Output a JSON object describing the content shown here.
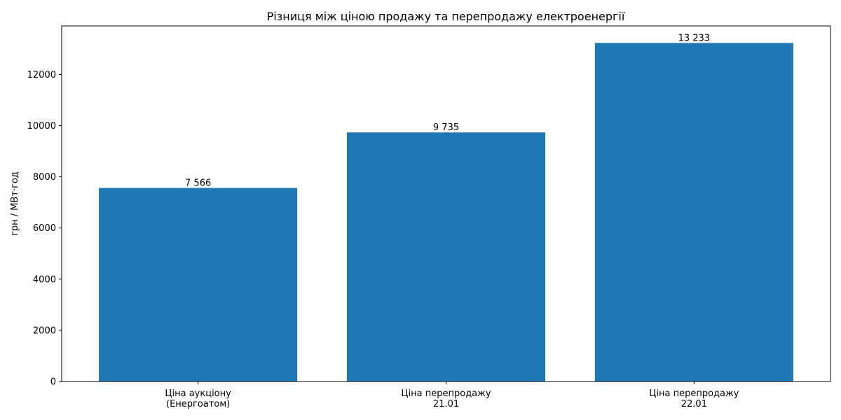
{
  "chart_data": {
    "type": "bar",
    "title": "Різниця між ціною продажу та перепродажу електроенергії",
    "xlabel": "",
    "ylabel": "грн / МВт·год",
    "categories": [
      [
        "Ціна аукціону",
        "(Енергоатом)"
      ],
      [
        "Ціна перепродажу",
        "21.01"
      ],
      [
        "Ціна перепродажу",
        "22.01"
      ]
    ],
    "values": [
      7566,
      9735,
      13233
    ],
    "value_labels": [
      "7 566",
      "9 735",
      "13 233"
    ],
    "ylim": [
      0,
      13900
    ],
    "yticks": [
      0,
      2000,
      4000,
      6000,
      8000,
      10000,
      12000
    ],
    "grid": false,
    "legend": "none",
    "colors": {
      "bar": "#1f77b4",
      "axis": "#000000",
      "background": "#ffffff"
    }
  }
}
